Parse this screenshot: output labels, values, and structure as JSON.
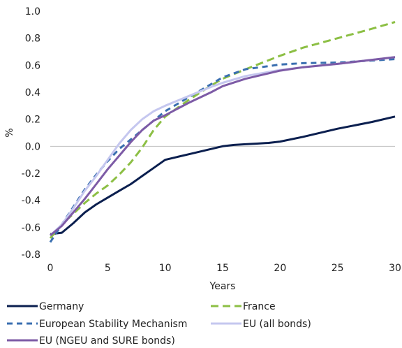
{
  "chart_data": {
    "type": "line",
    "title": "",
    "xlabel": "Years",
    "ylabel": "%",
    "xlim": [
      0,
      30
    ],
    "ylim": [
      -0.8,
      1.0
    ],
    "xticks": [
      0,
      5,
      10,
      15,
      20,
      25,
      30
    ],
    "yticks": [
      -0.8,
      -0.6,
      -0.4,
      -0.2,
      0.0,
      0.2,
      0.4,
      0.6,
      0.8,
      1.0
    ],
    "ytick_labels": [
      "-0.8",
      "-0.6",
      "-0.4",
      "-0.2",
      "0.0",
      "0.2",
      "0.4",
      "0.6",
      "0.8",
      "1.0"
    ],
    "grid": false,
    "legend_position": "bottom",
    "series": [
      {
        "name": "Germany",
        "color": "#0b1f4f",
        "dash": "solid",
        "x": [
          0,
          1,
          2,
          3,
          4,
          5,
          6,
          7,
          8,
          9,
          10,
          11,
          12,
          13,
          14,
          15,
          16,
          17,
          18,
          19,
          20,
          22,
          25,
          28,
          30
        ],
        "y": [
          -0.65,
          -0.64,
          -0.57,
          -0.49,
          -0.43,
          -0.38,
          -0.33,
          -0.28,
          -0.22,
          -0.16,
          -0.1,
          -0.08,
          -0.06,
          -0.04,
          -0.02,
          0.0,
          0.01,
          0.015,
          0.02,
          0.025,
          0.035,
          0.07,
          0.13,
          0.18,
          0.22
        ]
      },
      {
        "name": "France",
        "color": "#8cbf44",
        "dash": "long",
        "x": [
          0,
          1,
          2,
          3,
          4,
          5,
          6,
          7,
          8,
          9,
          10,
          12,
          14,
          15,
          17,
          20,
          22,
          25,
          28,
          30
        ],
        "y": [
          -0.68,
          -0.58,
          -0.5,
          -0.42,
          -0.35,
          -0.29,
          -0.21,
          -0.12,
          -0.01,
          0.12,
          0.22,
          0.34,
          0.45,
          0.5,
          0.57,
          0.67,
          0.73,
          0.8,
          0.87,
          0.92
        ]
      },
      {
        "name": "European Stability Mechanism",
        "color": "#3a6fb0",
        "dash": "short",
        "x": [
          0,
          1,
          2,
          3,
          4,
          5,
          6,
          7,
          8,
          9,
          10,
          12,
          14,
          15,
          17,
          20,
          22,
          25,
          28,
          30
        ],
        "y": [
          -0.71,
          -0.58,
          -0.45,
          -0.32,
          -0.21,
          -0.11,
          -0.02,
          0.05,
          0.12,
          0.19,
          0.26,
          0.36,
          0.46,
          0.51,
          0.57,
          0.605,
          0.615,
          0.62,
          0.635,
          0.645
        ]
      },
      {
        "name": "EU (all bonds)",
        "color": "#c5c7ef",
        "dash": "solid",
        "x": [
          0,
          1,
          2,
          3,
          4,
          5,
          6,
          7,
          8,
          9,
          10,
          12,
          14,
          15,
          17,
          20,
          22,
          25,
          28,
          30
        ],
        "y": [
          -0.66,
          -0.58,
          -0.46,
          -0.33,
          -0.22,
          -0.1,
          0.02,
          0.12,
          0.2,
          0.26,
          0.3,
          0.37,
          0.44,
          0.47,
          0.52,
          0.565,
          0.585,
          0.61,
          0.64,
          0.66
        ]
      },
      {
        "name": "EU (NGEU and SURE bonds)",
        "color": "#7d5ba6",
        "dash": "solid",
        "x": [
          0,
          1,
          2,
          3,
          4,
          5,
          6,
          7,
          8,
          9,
          10,
          12,
          14,
          15,
          17,
          20,
          22,
          25,
          28,
          30
        ],
        "y": [
          -0.66,
          -0.59,
          -0.49,
          -0.39,
          -0.28,
          -0.17,
          -0.07,
          0.03,
          0.12,
          0.19,
          0.23,
          0.32,
          0.4,
          0.445,
          0.5,
          0.56,
          0.585,
          0.61,
          0.64,
          0.66
        ]
      }
    ]
  }
}
